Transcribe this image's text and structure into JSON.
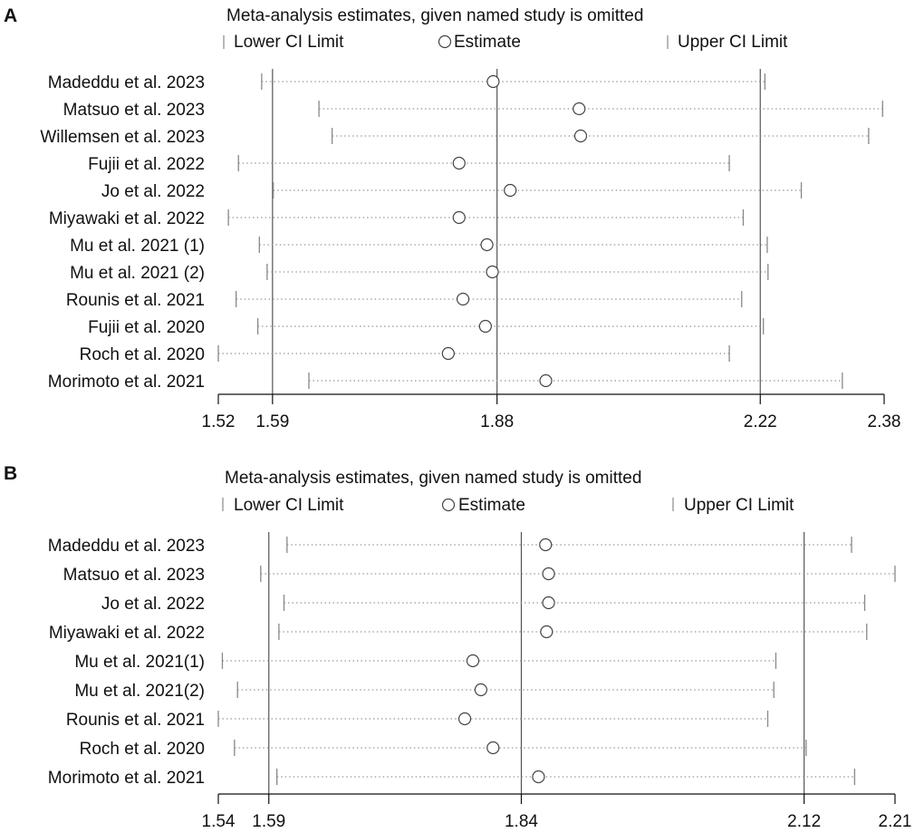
{
  "colors": {
    "axis": "#111111",
    "whisker": "#888888",
    "guide": "#555555",
    "dotted": "#999999",
    "marker": "#444444"
  },
  "chart_data": [
    {
      "panel": "A",
      "type": "scatter",
      "title": "Meta-analysis estimates, given named study is omitted",
      "legend": {
        "lower": "Lower CI Limit",
        "estimate": "Estimate",
        "upper": "Upper CI Limit",
        "placement": "top"
      },
      "xlim": [
        1.52,
        2.38
      ],
      "ticks": [
        {
          "v": 1.52,
          "label": "1.52"
        },
        {
          "v": 1.59,
          "label": "1.59"
        },
        {
          "v": 1.88,
          "label": "1.88"
        },
        {
          "v": 2.22,
          "label": "2.22"
        },
        {
          "v": 2.38,
          "label": "2.38"
        }
      ],
      "reference_lines": [
        1.59,
        1.88,
        2.22
      ],
      "studies": [
        {
          "name": "Madeddu et al. 2023",
          "lower": 1.576,
          "estimate": 1.875,
          "upper": 2.226
        },
        {
          "name": "Matsuo et al. 2023",
          "lower": 1.65,
          "estimate": 1.986,
          "upper": 2.378
        },
        {
          "name": "Willemsen et al. 2023",
          "lower": 1.667,
          "estimate": 1.988,
          "upper": 2.36
        },
        {
          "name": "Fujii et al. 2022",
          "lower": 1.546,
          "estimate": 1.831,
          "upper": 2.18
        },
        {
          "name": "Jo et al. 2022",
          "lower": 1.591,
          "estimate": 1.897,
          "upper": 2.273
        },
        {
          "name": "Miyawaki et al. 2022",
          "lower": 1.533,
          "estimate": 1.831,
          "upper": 2.198
        },
        {
          "name": "Mu et al. 2021 (1)",
          "lower": 1.573,
          "estimate": 1.867,
          "upper": 2.229
        },
        {
          "name": "Mu et al. 2021 (2)",
          "lower": 1.583,
          "estimate": 1.874,
          "upper": 2.23
        },
        {
          "name": "Rounis et al. 2021",
          "lower": 1.543,
          "estimate": 1.836,
          "upper": 2.196
        },
        {
          "name": "Fujii et al. 2020",
          "lower": 1.571,
          "estimate": 1.865,
          "upper": 2.224
        },
        {
          "name": "Roch et al. 2020",
          "lower": 1.52,
          "estimate": 1.817,
          "upper": 2.18
        },
        {
          "name": "Morimoto et al. 2021",
          "lower": 1.637,
          "estimate": 1.943,
          "upper": 2.326
        }
      ]
    },
    {
      "panel": "B",
      "type": "scatter",
      "title": "Meta-analysis estimates, given named study is omitted",
      "legend": {
        "lower": "Lower CI Limit",
        "estimate": "Estimate",
        "upper": "Upper CI Limit",
        "placement": "top"
      },
      "xlim": [
        1.54,
        2.21
      ],
      "ticks": [
        {
          "v": 1.54,
          "label": "1.54"
        },
        {
          "v": 1.59,
          "label": "1.59"
        },
        {
          "v": 1.84,
          "label": "1.84"
        },
        {
          "v": 2.12,
          "label": "2.12"
        },
        {
          "v": 2.21,
          "label": "2.21"
        }
      ],
      "reference_lines": [
        1.59,
        1.84,
        2.12
      ],
      "studies": [
        {
          "name": "Madeddu et al. 2023",
          "lower": 1.608,
          "estimate": 1.864,
          "upper": 2.167
        },
        {
          "name": "Matsuo et al. 2023",
          "lower": 1.582,
          "estimate": 1.867,
          "upper": 2.21
        },
        {
          "name": "Jo et al. 2022",
          "lower": 1.605,
          "estimate": 1.867,
          "upper": 2.18
        },
        {
          "name": "Miyawaki et al. 2022",
          "lower": 1.6,
          "estimate": 1.865,
          "upper": 2.182
        },
        {
          "name": "Mu et al. 2021(1)",
          "lower": 1.544,
          "estimate": 1.792,
          "upper": 2.092
        },
        {
          "name": "Mu et al. 2021(2)",
          "lower": 1.559,
          "estimate": 1.8,
          "upper": 2.09
        },
        {
          "name": "Rounis et al. 2021",
          "lower": 1.54,
          "estimate": 1.784,
          "upper": 2.084
        },
        {
          "name": "Roch et al. 2020",
          "lower": 1.556,
          "estimate": 1.812,
          "upper": 2.122
        },
        {
          "name": "Morimoto et al. 2021",
          "lower": 1.598,
          "estimate": 1.857,
          "upper": 2.17
        }
      ]
    }
  ]
}
